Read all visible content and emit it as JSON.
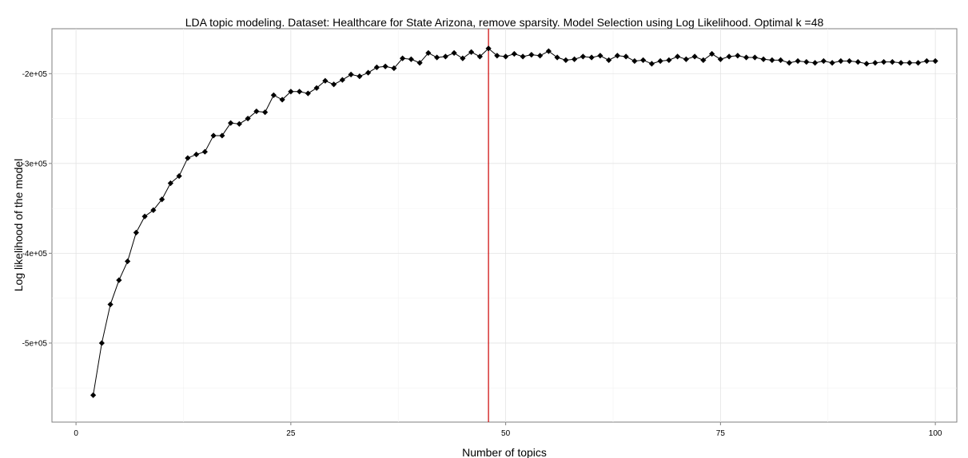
{
  "chart_data": {
    "type": "line",
    "title": "LDA topic modeling. Dataset: Healthcare for State Arizona, remove sparsity. Model Selection using Log Likelihood.   Optimal k =48",
    "xlabel": "Number of topics",
    "ylabel": "Log likelihood of the model",
    "xlim": [
      -2.8,
      102.5
    ],
    "ylim": [
      -588000,
      -150000
    ],
    "x_ticks": [
      0,
      25,
      50,
      75,
      100
    ],
    "x_tick_labels": [
      "0",
      "25",
      "50",
      "75",
      "100"
    ],
    "y_ticks": [
      -200000,
      -300000,
      -400000,
      -500000
    ],
    "y_tick_labels": [
      "-2e+05",
      "-3e+05",
      "-4e+05",
      "-5e+05"
    ],
    "grid": true,
    "marker": "diamond",
    "reference_line": {
      "x": 48,
      "color": "#cc0000"
    },
    "x": [
      2,
      3,
      4,
      5,
      6,
      7,
      8,
      9,
      10,
      11,
      12,
      13,
      14,
      15,
      16,
      17,
      18,
      19,
      20,
      21,
      22,
      23,
      24,
      25,
      26,
      27,
      28,
      29,
      30,
      31,
      32,
      33,
      34,
      35,
      36,
      37,
      38,
      39,
      40,
      41,
      42,
      43,
      44,
      45,
      46,
      47,
      48,
      49,
      50,
      51,
      52,
      53,
      54,
      55,
      56,
      57,
      58,
      59,
      60,
      61,
      62,
      63,
      64,
      65,
      66,
      67,
      68,
      69,
      70,
      71,
      72,
      73,
      74,
      75,
      76,
      77,
      78,
      79,
      80,
      81,
      82,
      83,
      84,
      85,
      86,
      87,
      88,
      89,
      90,
      91,
      92,
      93,
      94,
      95,
      96,
      97,
      98,
      99,
      100
    ],
    "y": [
      -558000,
      -500000,
      -457000,
      -430000,
      -409000,
      -377000,
      -359000,
      -352000,
      -340000,
      -322000,
      -314000,
      -294000,
      -290000,
      -287000,
      -269000,
      -269000,
      -255000,
      -256000,
      -250000,
      -242000,
      -243000,
      -224000,
      -229000,
      -220000,
      -220000,
      -222000,
      -216000,
      -208000,
      -212000,
      -207000,
      -201000,
      -203000,
      -199000,
      -193000,
      -192000,
      -194000,
      -183000,
      -184000,
      -188000,
      -177000,
      -182000,
      -181000,
      -177000,
      -183000,
      -176000,
      -181000,
      -172000,
      -180000,
      -181000,
      -178000,
      -181000,
      -179000,
      -180000,
      -175000,
      -182000,
      -185000,
      -184000,
      -181000,
      -182000,
      -180000,
      -185000,
      -180000,
      -181000,
      -186000,
      -185000,
      -189000,
      -186000,
      -185000,
      -181000,
      -184000,
      -181000,
      -185000,
      -178000,
      -184000,
      -181000,
      -180000,
      -182000,
      -182000,
      -184000,
      -185000,
      -185000,
      -188000,
      -186000,
      -187000,
      -188000,
      -186000,
      -188000,
      -186000,
      -186000,
      -187000,
      -189000,
      -188000,
      -187000,
      -187000,
      -188000,
      -188000,
      -188000,
      -186000,
      -186000
    ]
  }
}
